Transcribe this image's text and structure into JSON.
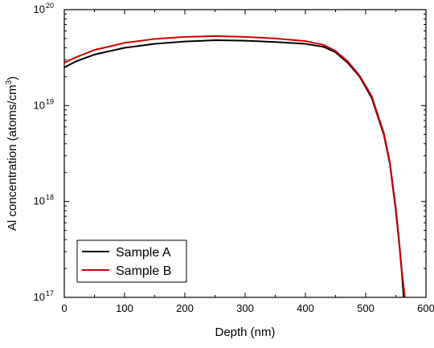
{
  "chart_data": {
    "type": "line",
    "xlabel": "Depth (nm)",
    "ylabel_main": "Al concentration (atoms/cm",
    "ylabel_sup": "3",
    "ylabel_tail": ")",
    "xlim": [
      0,
      600
    ],
    "ylim": [
      1e+17,
      1e+20
    ],
    "yscale": "log",
    "grid": false,
    "legend_position": "bottom-left",
    "x_ticks": [
      {
        "value": 0,
        "label": "0"
      },
      {
        "value": 100,
        "label": "100"
      },
      {
        "value": 200,
        "label": "200"
      },
      {
        "value": 300,
        "label": "300"
      },
      {
        "value": 400,
        "label": "400"
      },
      {
        "value": 500,
        "label": "500"
      },
      {
        "value": 600,
        "label": "600"
      }
    ],
    "y_ticks": [
      {
        "value": 1e+17,
        "base": "10",
        "exp": "17"
      },
      {
        "value": 1e+18,
        "base": "10",
        "exp": "18"
      },
      {
        "value": 1e+19,
        "base": "10",
        "exp": "19"
      },
      {
        "value": 1e+20,
        "base": "10",
        "exp": "20"
      }
    ],
    "series": [
      {
        "name": "Sample A",
        "color": "#000000",
        "x": [
          0,
          20,
          50,
          100,
          150,
          200,
          250,
          300,
          350,
          400,
          430,
          450,
          470,
          490,
          510,
          530,
          540,
          550,
          555,
          560,
          563
        ],
        "y": [
          2.5e+19,
          2.9e+19,
          3.4e+19,
          4e+19,
          4.4e+19,
          4.65e+19,
          4.8e+19,
          4.75e+19,
          4.6e+19,
          4.4e+19,
          4.1e+19,
          3.6e+19,
          2.8e+19,
          2e+19,
          1.2e+19,
          5e+18,
          2.5e+18,
          8e+17,
          4e+17,
          1.8e+17,
          1e+17
        ]
      },
      {
        "name": "Sample B",
        "color": "#d00000",
        "x": [
          0,
          20,
          50,
          100,
          150,
          200,
          250,
          300,
          350,
          400,
          430,
          450,
          470,
          490,
          510,
          530,
          540,
          550,
          555,
          560,
          565
        ],
        "y": [
          2.8e+19,
          3.2e+19,
          3.8e+19,
          4.5e+19,
          4.95e+19,
          5.2e+19,
          5.3e+19,
          5.2e+19,
          5e+19,
          4.7e+19,
          4.3e+19,
          3.7e+19,
          2.9e+19,
          2.05e+19,
          1.25e+19,
          5.2e+18,
          2.6e+18,
          8.5e+17,
          4.2e+17,
          1.9e+17,
          1e+17
        ]
      }
    ]
  }
}
